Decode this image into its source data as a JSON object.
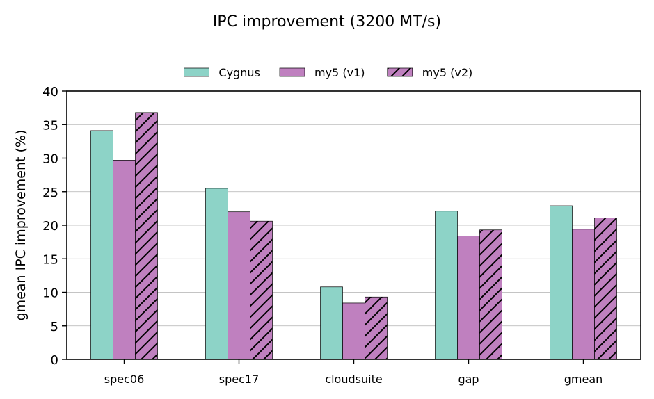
{
  "chart_data": {
    "type": "bar",
    "title": "IPC improvement (3200 MT/s)",
    "xlabel": "",
    "ylabel": "gmean IPC improvement (%)",
    "ylim": [
      0,
      40
    ],
    "yticks": [
      0,
      5,
      10,
      15,
      20,
      25,
      30,
      35,
      40
    ],
    "grid": "horizontal",
    "legend": "top-center",
    "categories": [
      "spec06",
      "spec17",
      "cloudsuite",
      "gap",
      "gmean"
    ],
    "series": [
      {
        "name": "Cygnus",
        "values": [
          34.1,
          25.5,
          10.8,
          22.1,
          22.9
        ],
        "color": "#8dd3c7",
        "hatch": false
      },
      {
        "name": "my5 (v1)",
        "values": [
          29.7,
          22.0,
          8.4,
          18.4,
          19.4
        ],
        "color": "#bf80bf",
        "hatch": false
      },
      {
        "name": "my5 (v2)",
        "values": [
          36.8,
          20.6,
          9.3,
          19.3,
          21.1
        ],
        "color": "#bf80bf",
        "hatch": true
      }
    ]
  }
}
